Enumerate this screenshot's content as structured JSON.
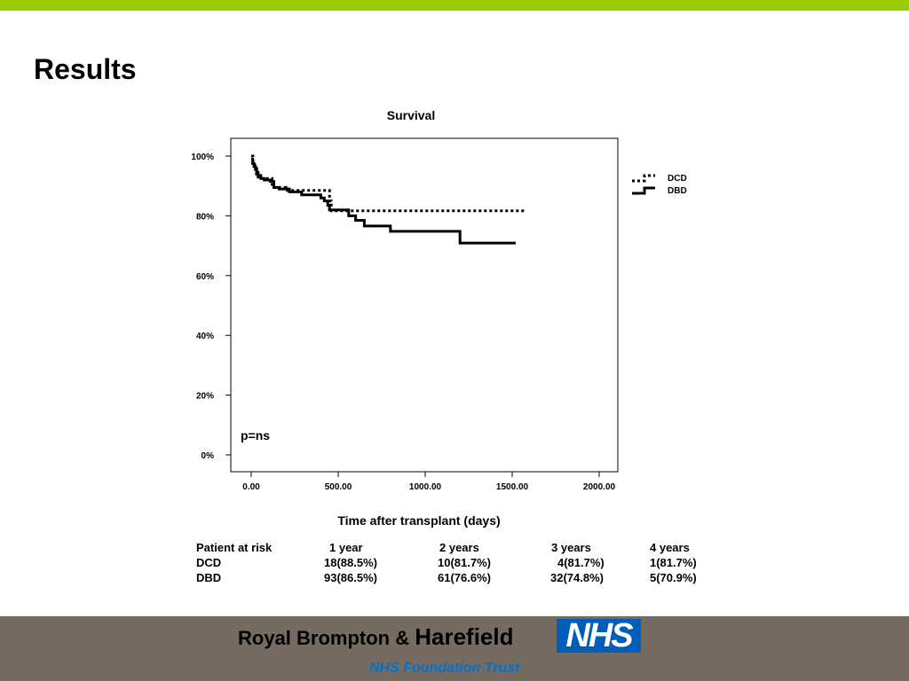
{
  "slide": {
    "title": "Results",
    "accent_color": "#99cc00",
    "footer_color": "#766b60"
  },
  "chart_data": {
    "type": "line",
    "title": "Survival",
    "xlabel": "Time after transplant (days)",
    "ylabel": "",
    "xlim": [
      0,
      2000
    ],
    "ylim": [
      0,
      100
    ],
    "x_ticks": [
      "0.00",
      "500.00",
      "1000.00",
      "1500.00",
      "2000.00"
    ],
    "y_ticks": [
      "0%",
      "20%",
      "40%",
      "60%",
      "80%",
      "100%"
    ],
    "grid": false,
    "legend_position": "right",
    "annotation": "p=ns",
    "series": [
      {
        "name": "DCD",
        "style": "dotted",
        "x": [
          0,
          10,
          20,
          30,
          40,
          80,
          120,
          200,
          440,
          450,
          460,
          1570
        ],
        "y": [
          100,
          98,
          96,
          94,
          92.5,
          92.5,
          89.5,
          88.5,
          88.5,
          85,
          81.7,
          81.7
        ]
      },
      {
        "name": "DBD",
        "style": "solid",
        "x": [
          0,
          8,
          16,
          24,
          32,
          40,
          55,
          75,
          110,
          130,
          160,
          220,
          290,
          400,
          420,
          440,
          450,
          560,
          600,
          650,
          800,
          1200,
          1520
        ],
        "y": [
          99,
          97.5,
          96.5,
          95.5,
          94.5,
          93.5,
          92.5,
          92,
          91.5,
          89.5,
          89,
          88,
          87,
          86,
          85,
          83.5,
          82,
          80,
          78.5,
          76.6,
          74.8,
          70.9,
          70.9
        ]
      }
    ]
  },
  "risk_table": {
    "header": [
      "Patient at risk",
      "1 year",
      "2 years",
      "3 years",
      "4 years"
    ],
    "rows": [
      [
        "DCD",
        "18(88.5%)",
        "10(81.7%)",
        "4(81.7%)",
        "1(81.7%)"
      ],
      [
        "DBD",
        "93(86.5%)",
        "61(76.6%)",
        "32(74.8%)",
        "5(70.9%)"
      ]
    ]
  },
  "footer": {
    "org_name_prefix": "Royal Brompton & ",
    "org_name_last": "Harefield",
    "logo_text": "NHS",
    "logo_color": "#005eb8",
    "trust": "NHS Foundation Trust",
    "trust_color": "#0072ce"
  }
}
